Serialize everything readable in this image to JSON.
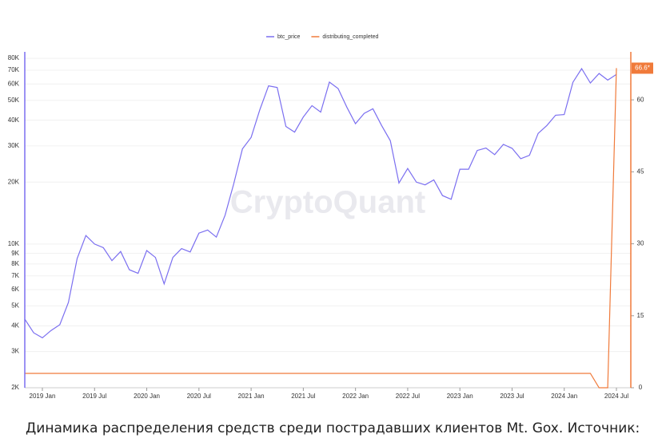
{
  "chart_data": {
    "type": "line",
    "watermark": "CryptoQuant",
    "caption": "Динамика распределения средств среди пострадавших клиентов Mt. Gox. Источник:",
    "x": [
      "2018 Nov",
      "2018 Dec",
      "2019 Jan",
      "2019 Feb",
      "2019 Mar",
      "2019 Apr",
      "2019 May",
      "2019 Jun",
      "2019 Jul",
      "2019 Aug",
      "2019 Sep",
      "2019 Oct",
      "2019 Nov",
      "2019 Dec",
      "2020 Jan",
      "2020 Feb",
      "2020 Mar",
      "2020 Apr",
      "2020 May",
      "2020 Jun",
      "2020 Jul",
      "2020 Aug",
      "2020 Sep",
      "2020 Oct",
      "2020 Nov",
      "2020 Dec",
      "2021 Jan",
      "2021 Feb",
      "2021 Mar",
      "2021 Apr",
      "2021 May",
      "2021 Jun",
      "2021 Jul",
      "2021 Aug",
      "2021 Sep",
      "2021 Oct",
      "2021 Nov",
      "2021 Dec",
      "2022 Jan",
      "2022 Feb",
      "2022 Mar",
      "2022 Apr",
      "2022 May",
      "2022 Jun",
      "2022 Jul",
      "2022 Aug",
      "2022 Sep",
      "2022 Oct",
      "2022 Nov",
      "2022 Dec",
      "2023 Jan",
      "2023 Feb",
      "2023 Mar",
      "2023 Apr",
      "2023 May",
      "2023 Jun",
      "2023 Jul",
      "2023 Aug",
      "2023 Sep",
      "2023 Oct",
      "2023 Nov",
      "2023 Dec",
      "2024 Jan",
      "2024 Feb",
      "2024 Mar",
      "2024 Apr",
      "2024 May",
      "2024 Jun",
      "2024 Jul"
    ],
    "xticks": [
      "2019 Jan",
      "2019 Jul",
      "2020 Jan",
      "2020 Jul",
      "2021 Jan",
      "2021 Jul",
      "2022 Jan",
      "2022 Jul",
      "2023 Jan",
      "2023 Jul",
      "2024 Jan",
      "2024 Jul"
    ],
    "series": [
      {
        "name": "btc_price",
        "color": "#7b6ff0",
        "axis": "y",
        "values": [
          4300,
          3700,
          3500,
          3800,
          4050,
          5200,
          8500,
          11000,
          10000,
          9600,
          8300,
          9200,
          7500,
          7200,
          9300,
          8600,
          6400,
          8600,
          9500,
          9150,
          11300,
          11700,
          10800,
          13800,
          19600,
          29000,
          33000,
          45000,
          58800,
          57700,
          37300,
          35000,
          41500,
          47100,
          43800,
          61300,
          57000,
          46300,
          38500,
          43200,
          45500,
          37700,
          31800,
          19800,
          23300,
          20000,
          19400,
          20500,
          17200,
          16500,
          23100,
          23100,
          28500,
          29300,
          27200,
          30500,
          29200,
          26000,
          27000,
          34500,
          37700,
          42300,
          42600,
          61200,
          71300,
          60700,
          67500,
          62700,
          66800
        ]
      },
      {
        "name": "distributing_completed",
        "color": "#f07a3a",
        "axis": "y2",
        "values": [
          3,
          3,
          3,
          3,
          3,
          3,
          3,
          3,
          3,
          3,
          3,
          3,
          3,
          3,
          3,
          3,
          3,
          3,
          3,
          3,
          3,
          3,
          3,
          3,
          3,
          3,
          3,
          3,
          3,
          3,
          3,
          3,
          3,
          3,
          3,
          3,
          3,
          3,
          3,
          3,
          3,
          3,
          3,
          3,
          3,
          3,
          3,
          3,
          3,
          3,
          3,
          3,
          3,
          3,
          3,
          3,
          3,
          3,
          3,
          3,
          3,
          3,
          3,
          3,
          3,
          3,
          0,
          0,
          66.6
        ],
        "value_labels": {
          "68": "66.6*"
        }
      }
    ],
    "log_y": true,
    "ylim": [
      2000,
      86000
    ],
    "yticks": [
      {
        "value": 2000,
        "label": "2K"
      },
      {
        "value": 3000,
        "label": "3K"
      },
      {
        "value": 4000,
        "label": "4K"
      },
      {
        "value": 5000,
        "label": "5K"
      },
      {
        "value": 6000,
        "label": "6K"
      },
      {
        "value": 7000,
        "label": "7K"
      },
      {
        "value": 8000,
        "label": "8K"
      },
      {
        "value": 9000,
        "label": "9K"
      },
      {
        "value": 10000,
        "label": "10K"
      },
      {
        "value": 20000,
        "label": "20K"
      },
      {
        "value": 30000,
        "label": "30K"
      },
      {
        "value": 40000,
        "label": "40K"
      },
      {
        "value": 50000,
        "label": "50K"
      },
      {
        "value": 60000,
        "label": "60K"
      },
      {
        "value": 70000,
        "label": "70K"
      },
      {
        "value": 80000,
        "label": "80K"
      }
    ],
    "y2lim": [
      0,
      70
    ],
    "y2ticks": [
      0,
      15,
      30,
      45,
      60
    ],
    "grid": true,
    "legend": "top"
  }
}
